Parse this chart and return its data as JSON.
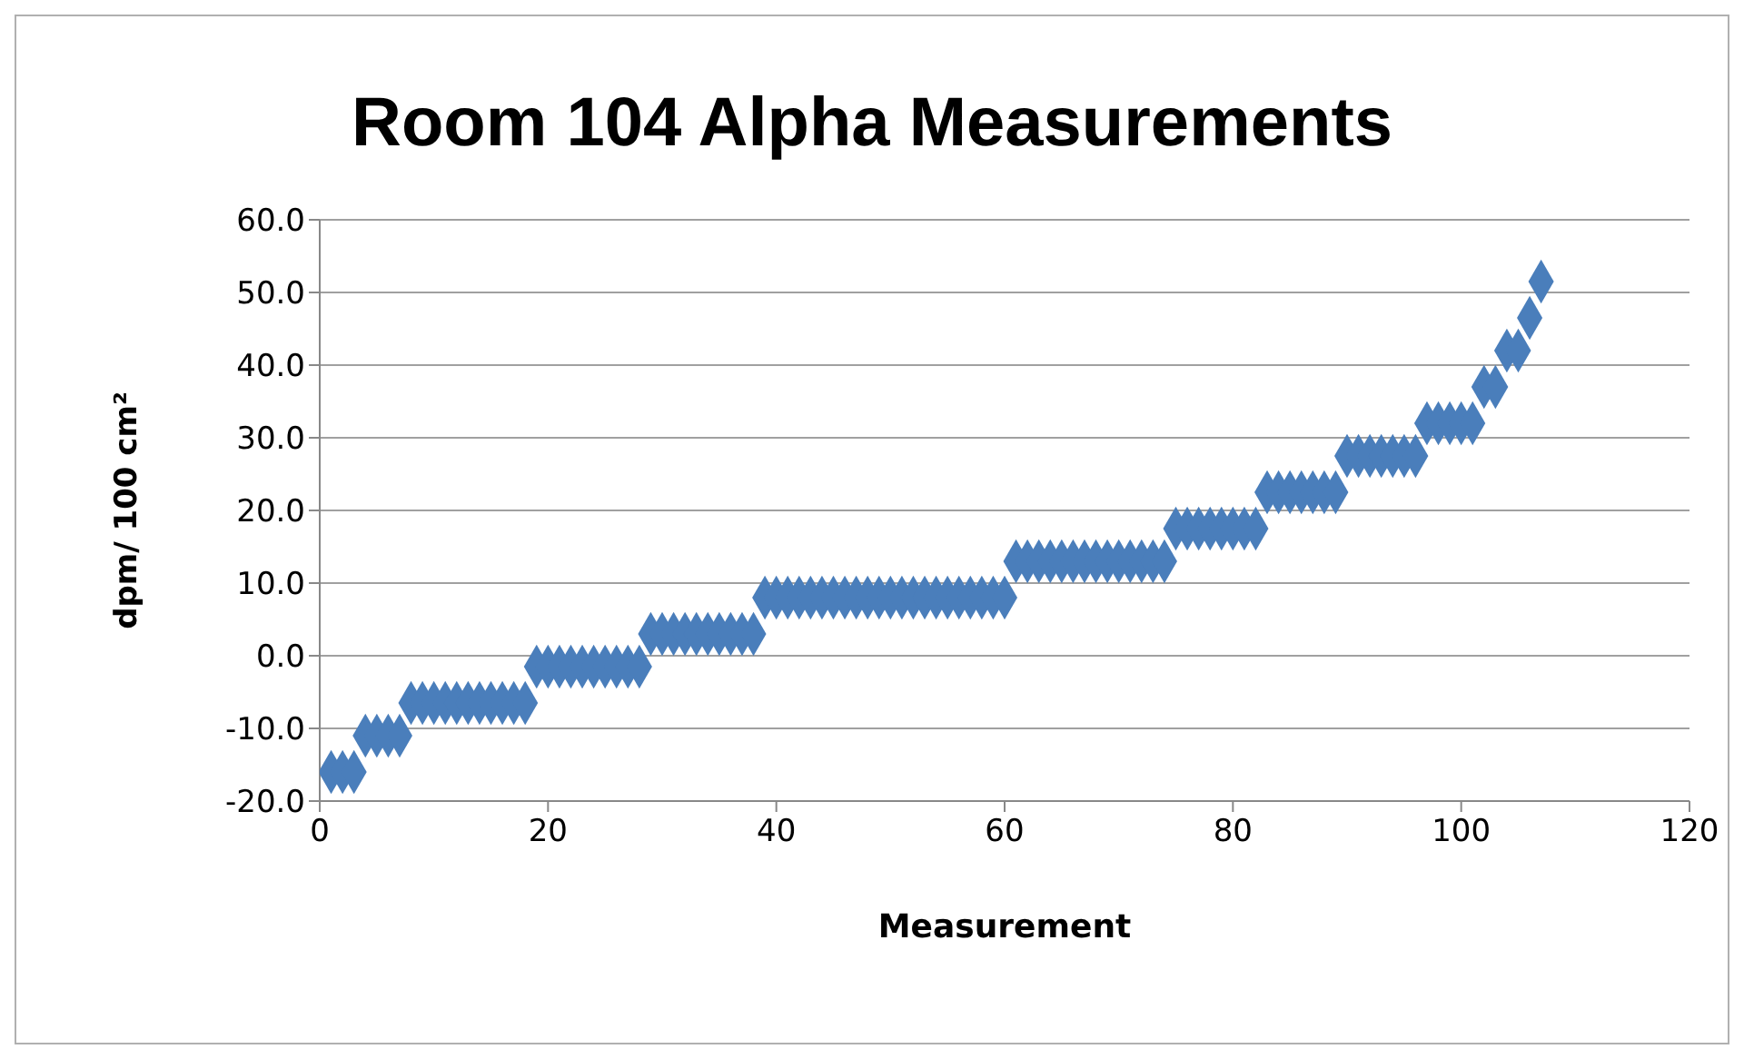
{
  "chart_data": {
    "type": "scatter",
    "title": "Room 104 Alpha Measurements",
    "xlabel": "Measurement",
    "ylabel": "dpm/ 100 cm²",
    "x": [
      1,
      2,
      3,
      4,
      5,
      6,
      7,
      8,
      9,
      10,
      11,
      12,
      13,
      14,
      15,
      16,
      17,
      18,
      19,
      20,
      21,
      22,
      23,
      24,
      25,
      26,
      27,
      28,
      29,
      30,
      31,
      32,
      33,
      34,
      35,
      36,
      37,
      38,
      39,
      40,
      41,
      42,
      43,
      44,
      45,
      46,
      47,
      48,
      49,
      50,
      51,
      52,
      53,
      54,
      55,
      56,
      57,
      58,
      59,
      60,
      61,
      62,
      63,
      64,
      65,
      66,
      67,
      68,
      69,
      70,
      71,
      72,
      73,
      74,
      75,
      76,
      77,
      78,
      79,
      80,
      81,
      82,
      83,
      84,
      85,
      86,
      87,
      88,
      89,
      90,
      91,
      92,
      93,
      94,
      95,
      96,
      97,
      98,
      99,
      100,
      101,
      102,
      103,
      104,
      105,
      106,
      107
    ],
    "series": [
      {
        "color": "#4a7ebb",
        "values": [
          -16,
          -16,
          -16,
          -11,
          -11,
          -11,
          -11,
          -6.5,
          -6.5,
          -6.5,
          -6.5,
          -6.5,
          -6.5,
          -6.5,
          -6.5,
          -6.5,
          -6.5,
          -6.5,
          -1.5,
          -1.5,
          -1.5,
          -1.5,
          -1.5,
          -1.5,
          -1.5,
          -1.5,
          -1.5,
          -1.5,
          3,
          3,
          3,
          3,
          3,
          3,
          3,
          3,
          3,
          3,
          8,
          8,
          8,
          8,
          8,
          8,
          8,
          8,
          8,
          8,
          8,
          8,
          8,
          8,
          8,
          8,
          8,
          8,
          8,
          8,
          8,
          8,
          13,
          13,
          13,
          13,
          13,
          13,
          13,
          13,
          13,
          13,
          13,
          13,
          13,
          13,
          17.5,
          17.5,
          17.5,
          17.5,
          17.5,
          17.5,
          17.5,
          17.5,
          22.5,
          22.5,
          22.5,
          22.5,
          22.5,
          22.5,
          22.5,
          27.5,
          27.5,
          27.5,
          27.5,
          27.5,
          27.5,
          27.5,
          32,
          32,
          32,
          32,
          32,
          37,
          37,
          42,
          42,
          46.5,
          51.5
        ]
      }
    ],
    "xlim": [
      0,
      120
    ],
    "xticks": [
      0,
      20,
      40,
      60,
      80,
      100,
      120
    ],
    "ylim": [
      -20,
      60
    ],
    "yticks": [
      {
        "value": -20,
        "label": "-20.0"
      },
      {
        "value": -10,
        "label": "-10.0"
      },
      {
        "value": 0,
        "label": "0.0"
      },
      {
        "value": 10,
        "label": "10.0"
      },
      {
        "value": 20,
        "label": "20.0"
      },
      {
        "value": 30,
        "label": "30.0"
      },
      {
        "value": 40,
        "label": "40.0"
      },
      {
        "value": 50,
        "label": "50.0"
      },
      {
        "value": 60,
        "label": "60.0"
      }
    ],
    "grid": "y",
    "marker": "diamond",
    "legend": false
  }
}
